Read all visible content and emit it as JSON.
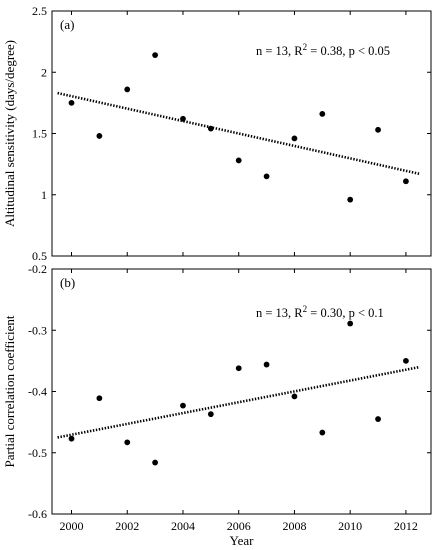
{
  "chart_data": [
    {
      "type": "scatter",
      "panel_label": "(a)",
      "annotation": {
        "prefix": "n = 13, R",
        "exp": "2",
        "suffix": " = 0.38, p < 0.05"
      },
      "xlabel": "",
      "ylabel": "Altitudinal sensitivity (days/degree)",
      "xlim": [
        1999.3,
        2012.9
      ],
      "ylim": [
        0.5,
        2.5
      ],
      "xticks": [
        2000,
        2002,
        2004,
        2006,
        2008,
        2010,
        2012
      ],
      "yticks": [
        0.5,
        1,
        1.5,
        2,
        2.5
      ],
      "ytick_labels": [
        "0.5",
        "1",
        "1.5",
        "2",
        "2.5"
      ],
      "show_xtick_labels": false,
      "grid": false,
      "points": {
        "x": [
          2000,
          2001,
          2002,
          2003,
          2004,
          2005,
          2006,
          2007,
          2008,
          2009,
          2010,
          2011,
          2012
        ],
        "y": [
          1.75,
          1.48,
          1.86,
          2.14,
          1.62,
          1.54,
          1.28,
          1.15,
          1.46,
          1.66,
          0.96,
          1.53,
          1.11
        ]
      },
      "trend_line": {
        "style": "dotted",
        "x": [
          1999.5,
          2012.5
        ],
        "y": [
          1.83,
          1.17
        ]
      }
    },
    {
      "type": "scatter",
      "panel_label": "(b)",
      "annotation": {
        "prefix": "n = 13, R",
        "exp": "2",
        "suffix": " = 0.30, p < 0.1"
      },
      "xlabel": "Year",
      "ylabel": "Partial correlation coefficient",
      "xlim": [
        1999.3,
        2012.9
      ],
      "ylim": [
        -0.6,
        -0.2
      ],
      "xticks": [
        2000,
        2002,
        2004,
        2006,
        2008,
        2010,
        2012
      ],
      "yticks": [
        -0.6,
        -0.5,
        -0.4,
        -0.3,
        -0.2
      ],
      "ytick_labels": [
        "-0.6",
        "-0.5",
        "-0.4",
        "-0.3",
        "-0.2"
      ],
      "show_xtick_labels": true,
      "grid": false,
      "points": {
        "x": [
          2000,
          2001,
          2002,
          2003,
          2004,
          2005,
          2006,
          2007,
          2008,
          2009,
          2010,
          2011,
          2012
        ],
        "y": [
          -0.477,
          -0.411,
          -0.483,
          -0.516,
          -0.423,
          -0.437,
          -0.362,
          -0.356,
          -0.408,
          -0.467,
          -0.289,
          -0.445,
          -0.35
        ]
      },
      "trend_line": {
        "style": "dotted",
        "x": [
          1999.5,
          2012.5
        ],
        "y": [
          -0.475,
          -0.36
        ]
      }
    }
  ]
}
